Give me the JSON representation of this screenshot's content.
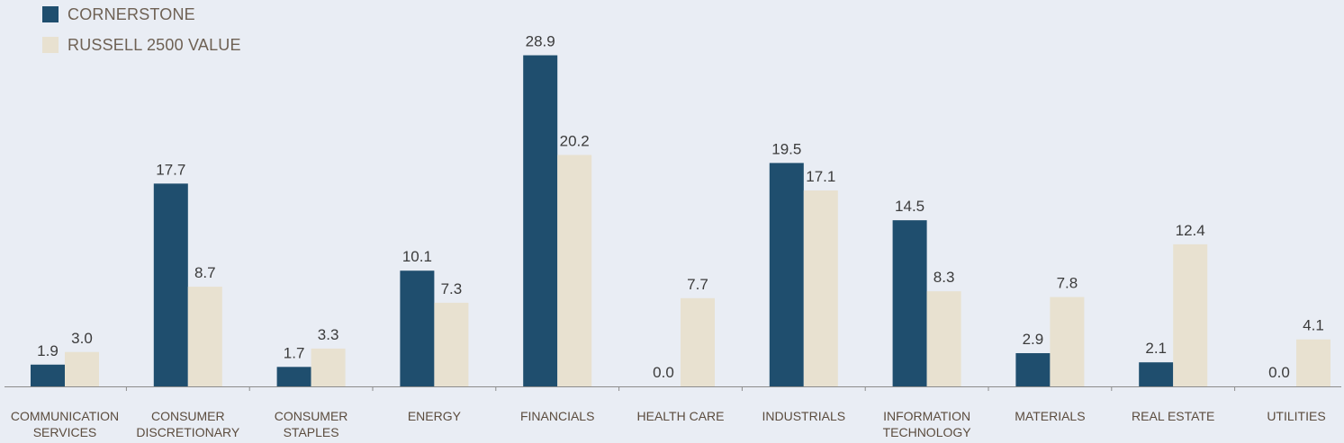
{
  "colors": {
    "background": "#e9edf4",
    "cornerstone": "#1f4e6e",
    "russell": "#e8e1d0",
    "axis": "#8c8c8c",
    "value_text": "#3b3b3b",
    "category_text": "#5b4c3e"
  },
  "chart_data": {
    "type": "bar",
    "title": "",
    "xlabel": "",
    "ylabel": "",
    "ylim": [
      0,
      30
    ],
    "grid": false,
    "legend_position": "top-left",
    "categories": [
      [
        "COMMUNICATION",
        "SERVICES"
      ],
      [
        "CONSUMER",
        "DISCRETIONARY"
      ],
      [
        "CONSUMER",
        "STAPLES"
      ],
      [
        "ENERGY"
      ],
      [
        "FINANCIALS"
      ],
      [
        "HEALTH CARE"
      ],
      [
        "INDUSTRIALS"
      ],
      [
        "INFORMATION",
        "TECHNOLOGY"
      ],
      [
        "MATERIALS"
      ],
      [
        "REAL ESTATE"
      ],
      [
        "UTILITIES"
      ]
    ],
    "series": [
      {
        "name": "CORNERSTONE",
        "color": "#1f4e6e",
        "values": [
          1.9,
          17.7,
          1.7,
          10.1,
          28.9,
          0.0,
          19.5,
          14.5,
          2.9,
          2.1,
          0.0
        ]
      },
      {
        "name": "RUSSELL 2500 VALUE",
        "color": "#e8e1d0",
        "values": [
          3.0,
          8.7,
          3.3,
          7.3,
          20.2,
          7.7,
          17.1,
          8.3,
          7.8,
          12.4,
          4.1
        ]
      }
    ]
  }
}
